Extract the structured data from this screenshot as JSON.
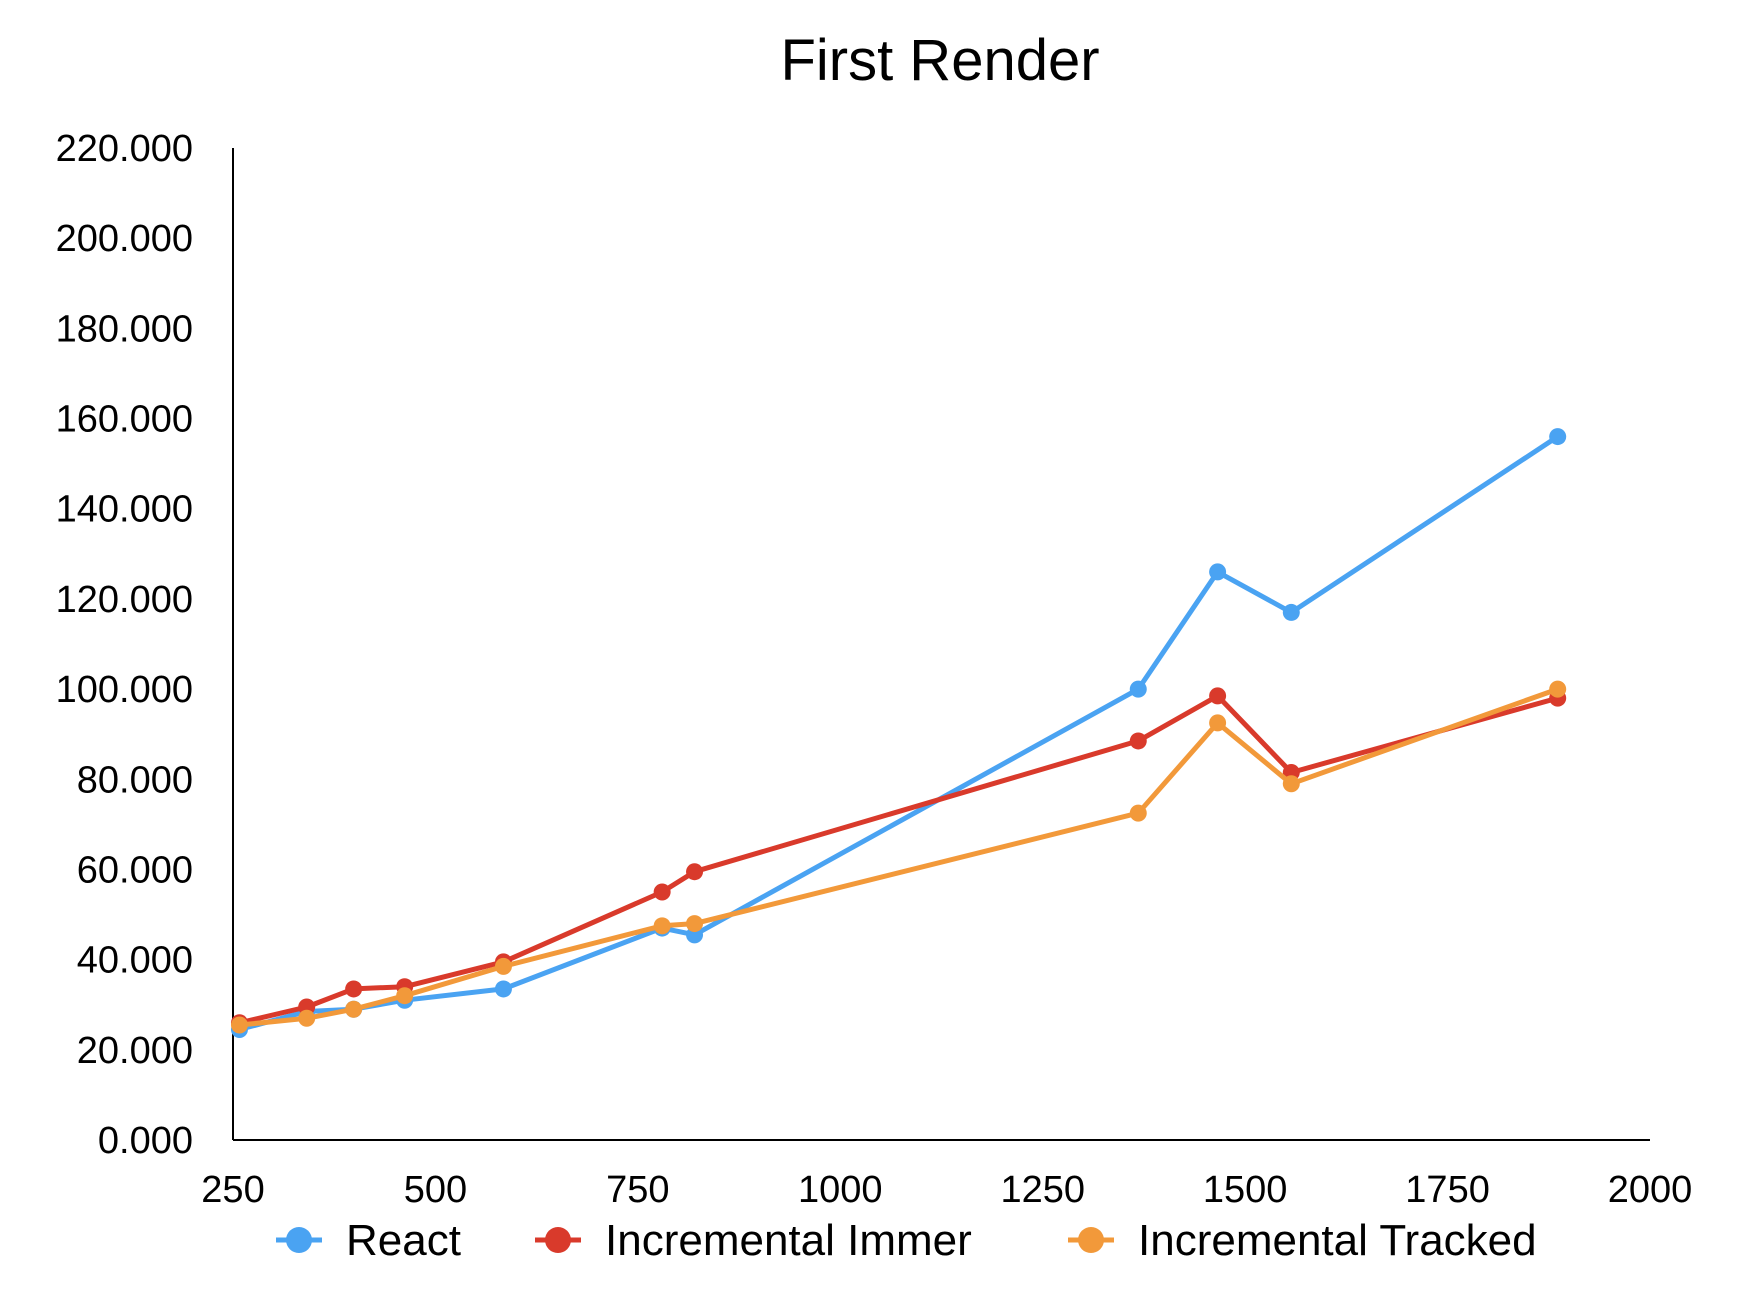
{
  "chart_data": {
    "type": "line",
    "title": "First Render",
    "xlabel": "",
    "ylabel": "",
    "xlim": [
      250,
      2000
    ],
    "ylim": [
      0,
      220
    ],
    "x_ticks": [
      "250",
      "500",
      "750",
      "1000",
      "1250",
      "1500",
      "1750",
      "2000"
    ],
    "x_tick_values": [
      250,
      500,
      750,
      1000,
      1250,
      1500,
      1750,
      2000
    ],
    "y_ticks": [
      "0.000",
      "20.000",
      "40.000",
      "60.000",
      "80.000",
      "100.000",
      "120.000",
      "140.000",
      "160.000",
      "180.000",
      "200.000",
      "220.000"
    ],
    "y_tick_values": [
      0,
      20,
      40,
      60,
      80,
      100,
      120,
      140,
      160,
      180,
      200,
      220
    ],
    "grid": false,
    "legend_position": "bottom",
    "series": [
      {
        "name": "React",
        "color": "#4aa3f2",
        "points": [
          [
            258,
            24.5
          ],
          [
            341,
            28.5
          ],
          [
            399,
            29
          ],
          [
            462,
            31
          ],
          [
            584,
            33.5
          ],
          [
            780,
            47
          ],
          [
            820,
            45.5
          ],
          [
            1368,
            100
          ],
          [
            1466,
            126
          ],
          [
            1557,
            117
          ],
          [
            1886,
            156
          ]
        ]
      },
      {
        "name": "Incremental Immer",
        "color": "#d93a2b",
        "points": [
          [
            258,
            26
          ],
          [
            341,
            29.5
          ],
          [
            399,
            33.5
          ],
          [
            462,
            34
          ],
          [
            584,
            39.5
          ],
          [
            780,
            55
          ],
          [
            820,
            59.5
          ],
          [
            1368,
            88.5
          ],
          [
            1466,
            98.5
          ],
          [
            1557,
            81.5
          ],
          [
            1886,
            98
          ]
        ]
      },
      {
        "name": "Incremental Tracked",
        "color": "#f2993a",
        "points": [
          [
            258,
            25.5
          ],
          [
            341,
            27
          ],
          [
            399,
            29
          ],
          [
            462,
            32
          ],
          [
            584,
            38.5
          ],
          [
            780,
            47.5
          ],
          [
            820,
            48
          ],
          [
            1368,
            72.5
          ],
          [
            1466,
            92.5
          ],
          [
            1557,
            79
          ],
          [
            1886,
            100
          ]
        ]
      }
    ]
  }
}
